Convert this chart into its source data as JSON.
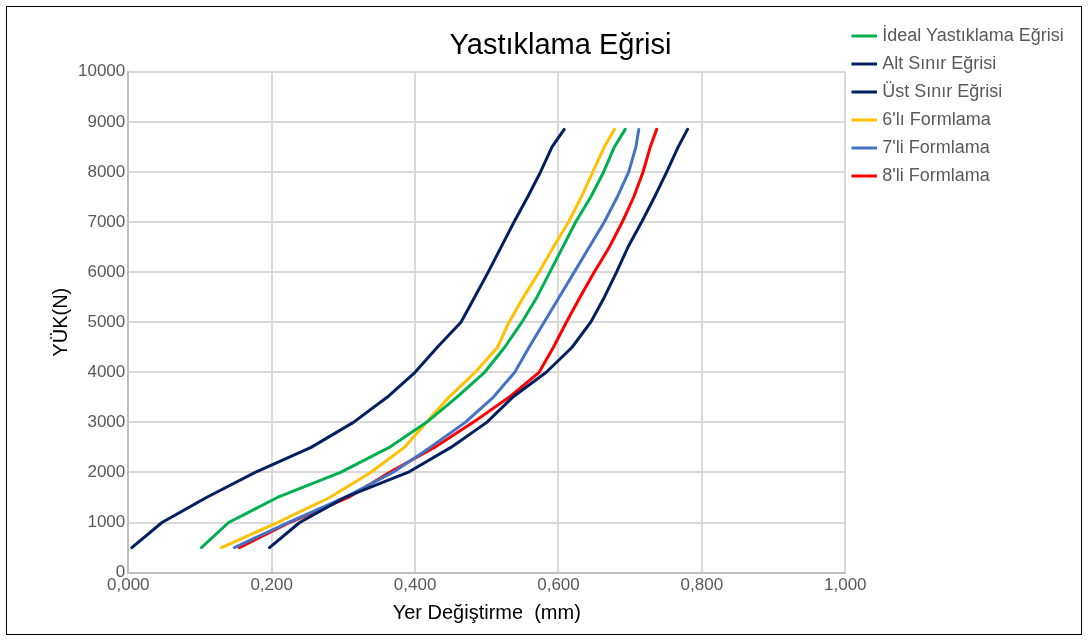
{
  "chart_data": {
    "type": "line",
    "title": "Yastıklama Eğrisi",
    "xlabel": "Yer Değiştirme  (mm)",
    "ylabel": "YÜK(N)",
    "xlim": [
      0,
      1
    ],
    "xticks": [
      {
        "value": 0,
        "label": "0,000"
      },
      {
        "value": 0.2,
        "label": "0,200"
      },
      {
        "value": 0.4,
        "label": "0,400"
      },
      {
        "value": 0.6,
        "label": "0,600"
      },
      {
        "value": 0.8,
        "label": "0,800"
      },
      {
        "value": 1,
        "label": "1,000"
      }
    ],
    "ylim": [
      0,
      10000
    ],
    "yticks": [
      0,
      1000,
      2000,
      3000,
      4000,
      5000,
      6000,
      7000,
      8000,
      9000,
      10000
    ],
    "grid": true,
    "legend": "right",
    "marker": "none",
    "line_style": "solid",
    "series": [
      {
        "name": "İdeal Yastıklama Eğrisi",
        "color": "#00b050",
        "x": [
          0.102,
          0.14,
          0.208,
          0.296,
          0.364,
          0.416,
          0.458,
          0.497,
          0.525,
          0.549,
          0.57,
          0.588,
          0.606,
          0.624,
          0.645,
          0.663,
          0.678,
          0.693
        ],
        "values": [
          500,
          1000,
          1500,
          2000,
          2500,
          3000,
          3500,
          4000,
          4500,
          5000,
          5500,
          6000,
          6500,
          7000,
          7500,
          8000,
          8500,
          8850
        ]
      },
      {
        "name": "Alt Sınır Eğrisi",
        "color": "#002060",
        "x": [
          0.005,
          0.047,
          0.109,
          0.177,
          0.255,
          0.314,
          0.361,
          0.4,
          0.431,
          0.464,
          0.483,
          0.502,
          0.52,
          0.538,
          0.557,
          0.575,
          0.591,
          0.608
        ],
        "values": [
          500,
          1000,
          1500,
          2000,
          2500,
          3000,
          3500,
          4000,
          4500,
          5000,
          5500,
          6000,
          6500,
          7000,
          7500,
          8000,
          8500,
          8850
        ]
      },
      {
        "name": "Üst Sınır Eğrisi",
        "color": "#002060",
        "x": [
          0.197,
          0.239,
          0.302,
          0.39,
          0.45,
          0.5,
          0.536,
          0.583,
          0.619,
          0.645,
          0.664,
          0.681,
          0.697,
          0.716,
          0.734,
          0.751,
          0.767,
          0.78
        ],
        "values": [
          500,
          1000,
          1500,
          2000,
          2500,
          3000,
          3500,
          4000,
          4500,
          5000,
          5500,
          6000,
          6500,
          7000,
          7500,
          8000,
          8500,
          8850
        ]
      },
      {
        "name": "6'lı Formlama",
        "color": "#ffc000",
        "x": [
          0.13,
          0.208,
          0.281,
          0.338,
          0.385,
          0.416,
          0.447,
          0.484,
          0.515,
          0.531,
          0.551,
          0.573,
          0.593,
          0.614,
          0.632,
          0.648,
          0.664,
          0.678
        ],
        "values": [
          500,
          1000,
          1500,
          2000,
          2500,
          3000,
          3500,
          4000,
          4500,
          5000,
          5500,
          6000,
          6500,
          7000,
          7500,
          8000,
          8500,
          8850
        ]
      },
      {
        "name": "7'li Formlama",
        "color": "#4472c4",
        "x": [
          0.148,
          0.223,
          0.302,
          0.369,
          0.421,
          0.47,
          0.509,
          0.539,
          0.559,
          0.58,
          0.601,
          0.622,
          0.643,
          0.664,
          0.682,
          0.698,
          0.708,
          0.712
        ],
        "values": [
          500,
          1000,
          1500,
          2000,
          2500,
          3000,
          3500,
          4000,
          4500,
          5000,
          5500,
          6000,
          6500,
          7000,
          7500,
          8000,
          8500,
          8850
        ]
      },
      {
        "name": "8'li Formlama",
        "color": "#ff0000",
        "x": [
          0.155,
          0.225,
          0.307,
          0.364,
          0.427,
          0.481,
          0.531,
          0.573,
          0.593,
          0.611,
          0.63,
          0.65,
          0.671,
          0.689,
          0.705,
          0.718,
          0.728,
          0.737
        ],
        "values": [
          500,
          1000,
          1500,
          2000,
          2500,
          3000,
          3500,
          4000,
          4500,
          5000,
          5500,
          6000,
          6500,
          7000,
          7500,
          8000,
          8500,
          8850
        ]
      }
    ]
  }
}
